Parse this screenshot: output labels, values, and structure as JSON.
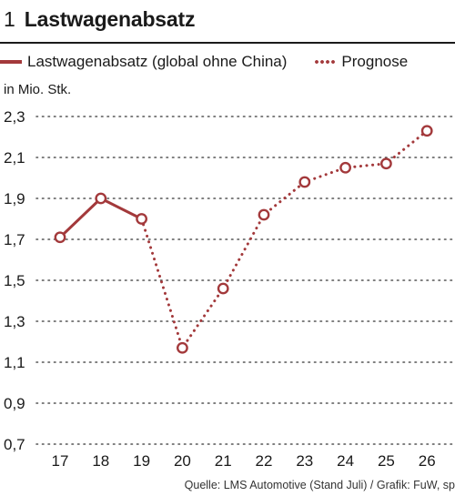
{
  "header": {
    "figure_number": "1",
    "title": "Lastwagenabsatz"
  },
  "legend": {
    "actual": "Lastwagenabsatz (global ohne China)",
    "forecast": "Prognose"
  },
  "unit_label": "in Mio. Stk.",
  "source": "Quelle: LMS Automotive (Stand Juli) / Grafik: FuW, sp",
  "colors": {
    "series": "#a3393b",
    "grid": "#555555",
    "text": "#1a1a1a"
  },
  "chart_data": {
    "type": "line",
    "x": [
      "17",
      "18",
      "19",
      "20",
      "21",
      "22",
      "23",
      "24",
      "25",
      "26"
    ],
    "ylim": [
      0.7,
      2.3
    ],
    "yticks": [
      "0,7",
      "0,9",
      "1,1",
      "1,3",
      "1,5",
      "1,7",
      "1,9",
      "2,1",
      "2,3"
    ],
    "ytick_values": [
      0.7,
      0.9,
      1.1,
      1.3,
      1.5,
      1.7,
      1.9,
      2.1,
      2.3
    ],
    "grid": true,
    "legend_position": "top",
    "series": [
      {
        "name": "Lastwagenabsatz (global ohne China)",
        "style": "solid",
        "x": [
          "17",
          "18",
          "19"
        ],
        "values": [
          1.71,
          1.9,
          1.8
        ]
      },
      {
        "name": "Prognose",
        "style": "dotted",
        "x": [
          "19",
          "20",
          "21",
          "22",
          "23",
          "24",
          "25",
          "26"
        ],
        "values": [
          1.8,
          1.17,
          1.46,
          1.82,
          1.98,
          2.05,
          2.07,
          2.23
        ]
      }
    ]
  }
}
